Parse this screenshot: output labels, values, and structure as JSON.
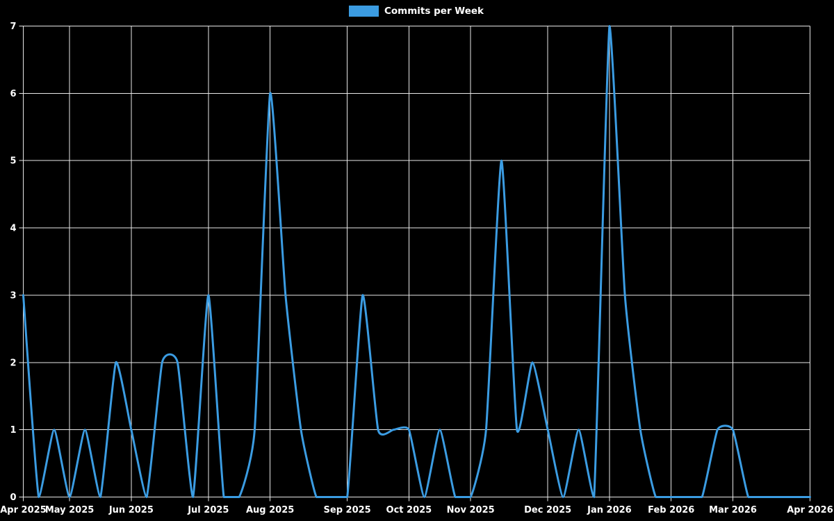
{
  "page": {
    "background_color": "#000000",
    "text_color": "#ffffff",
    "grid_color": "#e8e8e8"
  },
  "legend": {
    "label": "Commits per Week"
  },
  "chart_data": {
    "type": "line",
    "title": "",
    "legend_entries": [
      "Commits per Week"
    ],
    "legend_position": "top-center",
    "grid": true,
    "background": "#000000",
    "line_color": "#3b9ce2",
    "line_width": 3,
    "smoothing": "spline",
    "ylim": [
      0,
      7
    ],
    "y_ticks": [
      0,
      1,
      2,
      3,
      4,
      5,
      6,
      7
    ],
    "x_unit": "week",
    "x_range_weeks": 52,
    "x_ticks": [
      {
        "label": "Apr 2025",
        "week": 0
      },
      {
        "label": "May 2025",
        "week": 3
      },
      {
        "label": "Jun 2025",
        "week": 7
      },
      {
        "label": "Jul 2025",
        "week": 12
      },
      {
        "label": "Aug 2025",
        "week": 16
      },
      {
        "label": "Sep 2025",
        "week": 21
      },
      {
        "label": "Oct 2025",
        "week": 25
      },
      {
        "label": "Nov 2025",
        "week": 29
      },
      {
        "label": "Dec 2025",
        "week": 34
      },
      {
        "label": "Jan 2026",
        "week": 38
      },
      {
        "label": "Feb 2026",
        "week": 42
      },
      {
        "label": "Mar 2026",
        "week": 46
      },
      {
        "label": "Apr 2026",
        "week": 51
      }
    ],
    "series": [
      {
        "name": "Commits per Week",
        "color": "#3b9ce2",
        "values": [
          3,
          0,
          1,
          0,
          1,
          0,
          2,
          1,
          0,
          2,
          2,
          0,
          3,
          0,
          0,
          1,
          6,
          3,
          1,
          0,
          0,
          0,
          3,
          1,
          1,
          1,
          0,
          1,
          0,
          0,
          1,
          5,
          1,
          2,
          1,
          0,
          1,
          0,
          7,
          3,
          1,
          0,
          0,
          0,
          0,
          1,
          1,
          0,
          0,
          0,
          0,
          0
        ]
      }
    ]
  }
}
